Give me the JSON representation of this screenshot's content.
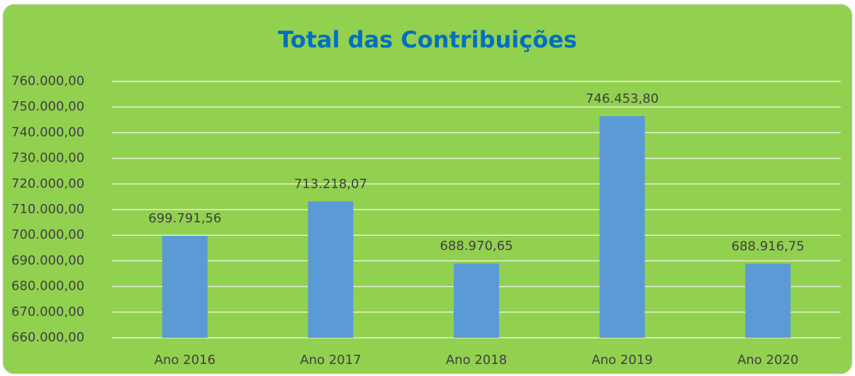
{
  "chart_data": {
    "type": "bar",
    "title": "Total das Contribuições",
    "categories": [
      "Ano 2016",
      "Ano 2017",
      "Ano 2018",
      "Ano 2019",
      "Ano 2020"
    ],
    "values": [
      699791.56,
      713218.07,
      688970.65,
      746453.8,
      688916.75
    ],
    "value_labels": [
      "699.791,56",
      "713.218,07",
      "688.970,65",
      "746.453,80",
      "688.916,75"
    ],
    "color": "#5b9bd5",
    "ylim": [
      660000,
      760000
    ],
    "yticks": [
      {
        "value": 660000,
        "label": "660.000,00"
      },
      {
        "value": 670000,
        "label": "670.000,00"
      },
      {
        "value": 680000,
        "label": "680.000,00"
      },
      {
        "value": 690000,
        "label": "690.000,00"
      },
      {
        "value": 700000,
        "label": "700.000,00"
      },
      {
        "value": 710000,
        "label": "710.000,00"
      },
      {
        "value": 720000,
        "label": "720.000,00"
      },
      {
        "value": 730000,
        "label": "730.000,00"
      },
      {
        "value": 740000,
        "label": "740.000,00"
      },
      {
        "value": 750000,
        "label": "750.000,00"
      },
      {
        "value": 760000,
        "label": "760.000,00"
      }
    ],
    "grid": true
  }
}
